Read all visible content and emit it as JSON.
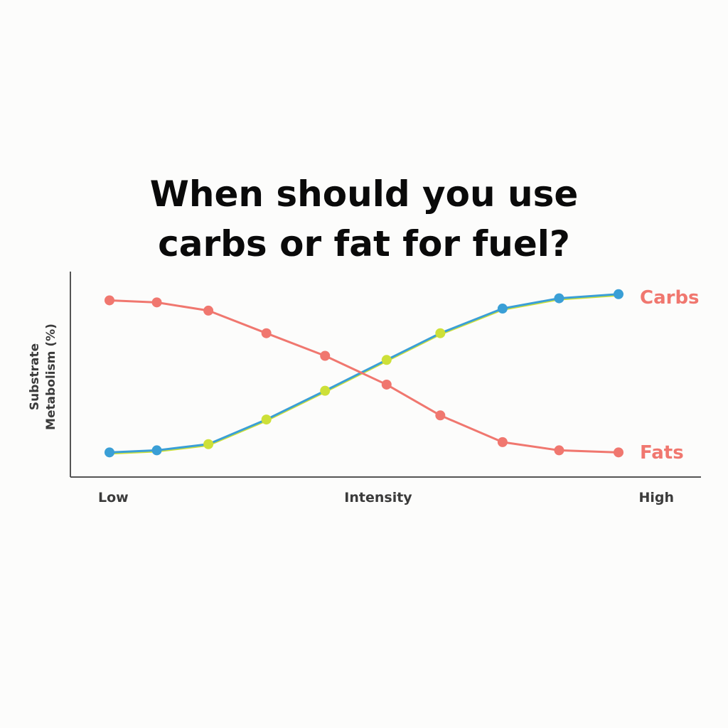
{
  "chart_data": {
    "type": "line",
    "title": [
      "When should you use",
      "carbs or fat for fuel?"
    ],
    "ylabel": [
      "Substrate",
      "Metabolism (%)"
    ],
    "xlabel": "Intensity",
    "x_tick_labels": [
      "Low",
      "High"
    ],
    "x": [
      1,
      2,
      3,
      4,
      5,
      6,
      7,
      8,
      9,
      10
    ],
    "ylim": [
      0,
      100
    ],
    "grid": false,
    "series": [
      {
        "name": "Carbs",
        "color": "#3a9fd6",
        "marker_color": [
          "#3a9fd6",
          "#3a9fd6",
          "#cde038",
          "#cde038",
          "#cde038",
          "#cde038",
          "#cde038",
          "#3a9fd6",
          "#3a9fd6",
          "#3a9fd6"
        ],
        "values": [
          12,
          13,
          16,
          28,
          42,
          57,
          70,
          82,
          87,
          89
        ]
      },
      {
        "name": "Fats",
        "color": "#f0776f",
        "marker_color": [
          "#f0776f",
          "#f0776f",
          "#f0776f",
          "#f0776f",
          "#f0776f",
          "#f0776f",
          "#f0776f",
          "#f0776f",
          "#f0776f",
          "#f0776f"
        ],
        "values": [
          86,
          85,
          81,
          70,
          59,
          45,
          30,
          17,
          13,
          12
        ]
      }
    ]
  }
}
